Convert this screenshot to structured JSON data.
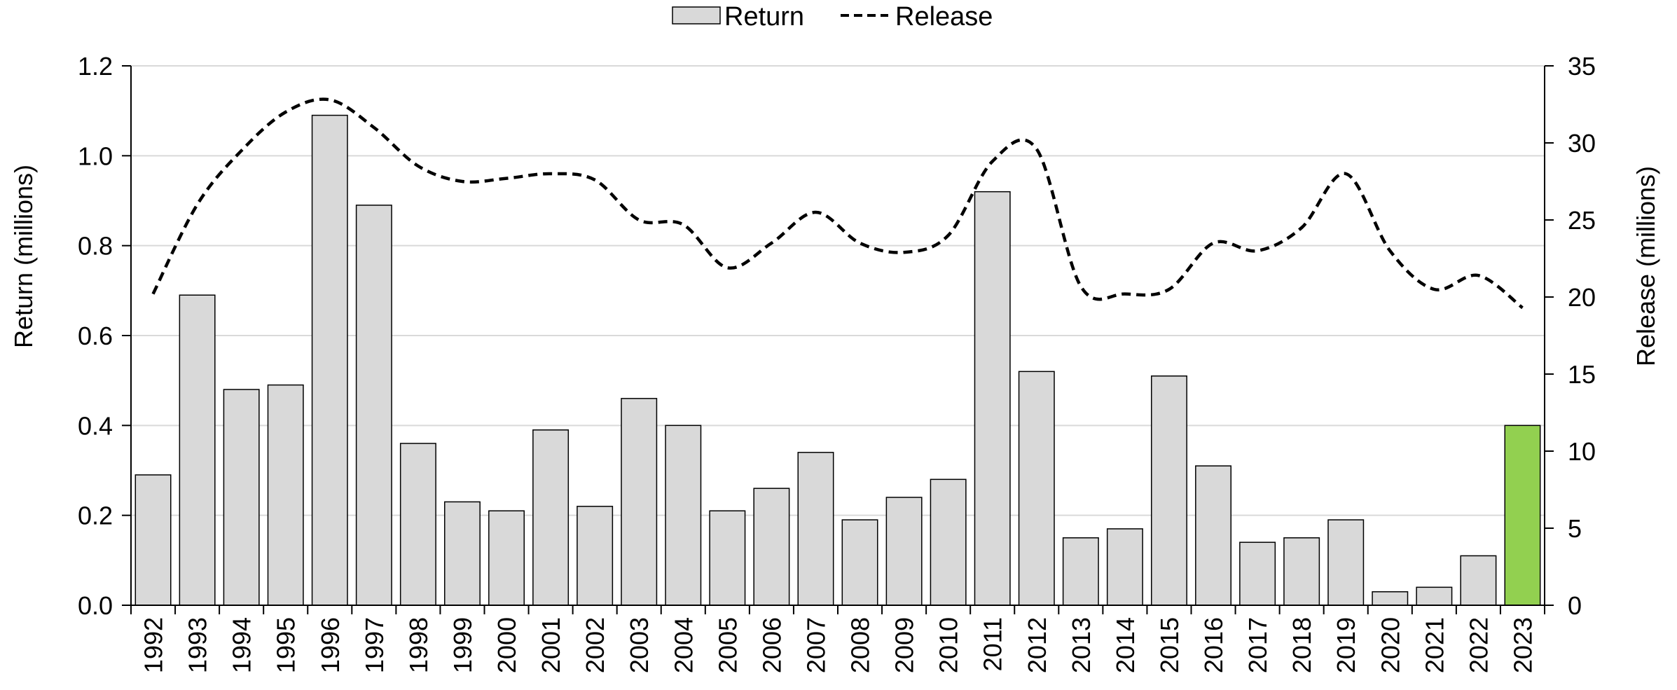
{
  "chart_data": {
    "type": "bar",
    "categories": [
      "1992",
      "1993",
      "1994",
      "1995",
      "1996",
      "1997",
      "1998",
      "1999",
      "2000",
      "2001",
      "2002",
      "2003",
      "2004",
      "2005",
      "2006",
      "2007",
      "2008",
      "2009",
      "2010",
      "2011",
      "2012",
      "2013",
      "2014",
      "2015",
      "2016",
      "2017",
      "2018",
      "2019",
      "2020",
      "2021",
      "2022",
      "2023"
    ],
    "series": [
      {
        "name": "Return",
        "type": "bar",
        "axis": "left",
        "values": [
          0.29,
          0.69,
          0.48,
          0.49,
          1.09,
          0.89,
          0.36,
          0.23,
          0.21,
          0.39,
          0.22,
          0.46,
          0.4,
          0.21,
          0.26,
          0.34,
          0.19,
          0.24,
          0.28,
          0.92,
          0.52,
          0.15,
          0.17,
          0.51,
          0.31,
          0.14,
          0.15,
          0.19,
          0.03,
          0.04,
          0.11,
          0.4
        ],
        "color": "#d9d9d9",
        "highlight": {
          "category": "2023",
          "color": "#92d050"
        }
      },
      {
        "name": "Release",
        "type": "line",
        "axis": "right",
        "style": "dashed",
        "values": [
          20.2,
          26.0,
          29.5,
          32.0,
          32.8,
          31.0,
          28.5,
          27.5,
          27.7,
          28.0,
          27.6,
          25.0,
          24.7,
          21.9,
          23.5,
          25.5,
          23.5,
          22.9,
          24.0,
          28.8,
          29.6,
          20.7,
          20.2,
          20.5,
          23.5,
          23.0,
          24.5,
          28.0,
          23.0,
          20.5,
          21.4,
          19.3
        ],
        "color": "#000000"
      }
    ],
    "y_left": {
      "label": "Return (millions)",
      "min": 0,
      "max": 1.2,
      "ticks": [
        "0.0",
        "0.2",
        "0.4",
        "0.6",
        "0.8",
        "1.0",
        "1.2"
      ]
    },
    "y_right": {
      "label": "Release (millions)",
      "min": 0,
      "max": 35,
      "ticks": [
        "0",
        "5",
        "10",
        "15",
        "20",
        "25",
        "30",
        "35"
      ]
    },
    "xlabel": "",
    "grid": true,
    "legend": {
      "position": "top-center",
      "entries": [
        "Return",
        "Release"
      ]
    }
  }
}
